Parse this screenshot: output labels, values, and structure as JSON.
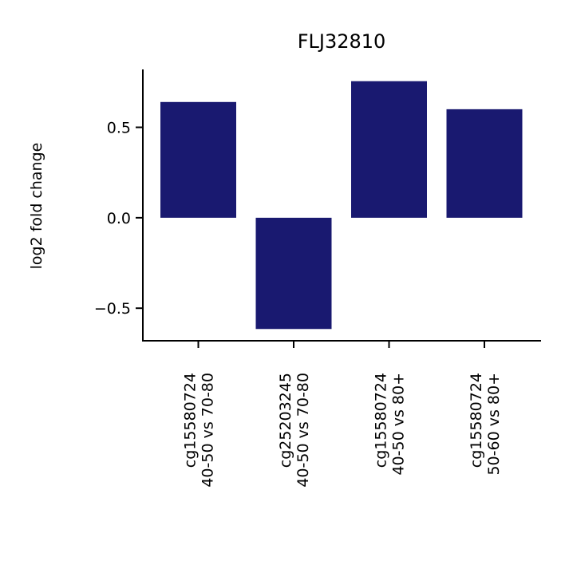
{
  "chart_data": {
    "type": "bar",
    "title": "FLJ32810",
    "xlabel": "",
    "ylabel": "log2 fold change",
    "categories": [
      [
        "cg15580724",
        "40-50 vs 70-80"
      ],
      [
        "cg25203245",
        "40-50 vs 70-80"
      ],
      [
        "cg15580724",
        "40-50 vs 80+"
      ],
      [
        "cg15580724",
        "50-60 vs 80+"
      ]
    ],
    "values": [
      0.64,
      -0.615,
      0.755,
      0.6
    ],
    "ylim": [
      -0.68,
      0.82
    ],
    "yticks": [
      -0.5,
      0.0,
      0.5
    ],
    "ytick_labels": [
      "−0.5",
      "0.0",
      "0.5"
    ],
    "grid": false,
    "bar_color": "#191970"
  }
}
